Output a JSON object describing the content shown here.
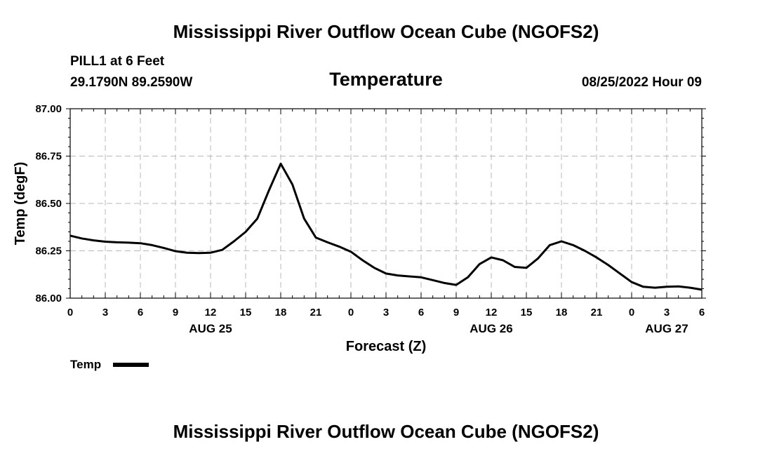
{
  "page_title": "Mississippi River Outflow Ocean Cube (NGOFS2)",
  "station": "PILL1 at 6 Feet",
  "coords": "29.1790N  89.2590W",
  "timestamp": "08/25/2022 Hour 09",
  "footer_title": "Mississippi River Outflow Ocean Cube (NGOFS2)",
  "legend_label": "Temp",
  "chart_data": {
    "type": "line",
    "title": "Temperature",
    "xlabel": "Forecast (Z)",
    "ylabel": "Temp (degF)",
    "xlim": [
      0,
      54
    ],
    "ylim": [
      86.0,
      87.0
    ],
    "x_tick_labels": [
      "0",
      "3",
      "6",
      "9",
      "12",
      "15",
      "18",
      "21",
      "0",
      "3",
      "6",
      "9",
      "12",
      "15",
      "18",
      "21",
      "0",
      "3",
      "6"
    ],
    "y_tick_labels": [
      "86.00",
      "86.25",
      "86.50",
      "86.75",
      "87.00"
    ],
    "y_ticks": [
      86.0,
      86.25,
      86.5,
      86.75,
      87.0
    ],
    "date_labels": [
      {
        "label": "AUG 25",
        "x": 12
      },
      {
        "label": "AUG 26",
        "x": 36
      },
      {
        "label": "AUG 27",
        "x": 51
      }
    ],
    "grid": true,
    "series": [
      {
        "name": "Temp",
        "x": [
          0,
          1,
          2,
          3,
          4,
          5,
          6,
          7,
          8,
          9,
          10,
          11,
          12,
          13,
          14,
          15,
          16,
          17,
          18,
          19,
          20,
          21,
          22,
          23,
          24,
          25,
          26,
          27,
          28,
          29,
          30,
          31,
          32,
          33,
          34,
          35,
          36,
          37,
          38,
          39,
          40,
          41,
          42,
          43,
          44,
          45,
          46,
          47,
          48,
          49,
          50,
          51,
          52,
          53,
          54
        ],
        "values": [
          86.33,
          86.315,
          86.305,
          86.298,
          86.295,
          86.293,
          86.29,
          86.28,
          86.265,
          86.248,
          86.24,
          86.238,
          86.24,
          86.255,
          86.3,
          86.35,
          86.42,
          86.57,
          86.71,
          86.6,
          86.42,
          86.32,
          86.295,
          86.272,
          86.245,
          86.2,
          86.16,
          86.13,
          86.12,
          86.115,
          86.11,
          86.095,
          86.08,
          86.07,
          86.11,
          86.18,
          86.215,
          86.2,
          86.165,
          86.16,
          86.21,
          86.28,
          86.3,
          86.28,
          86.25,
          86.215,
          86.175,
          86.13,
          86.085,
          86.06,
          86.055,
          86.06,
          86.062,
          86.055,
          86.045
        ]
      }
    ]
  }
}
